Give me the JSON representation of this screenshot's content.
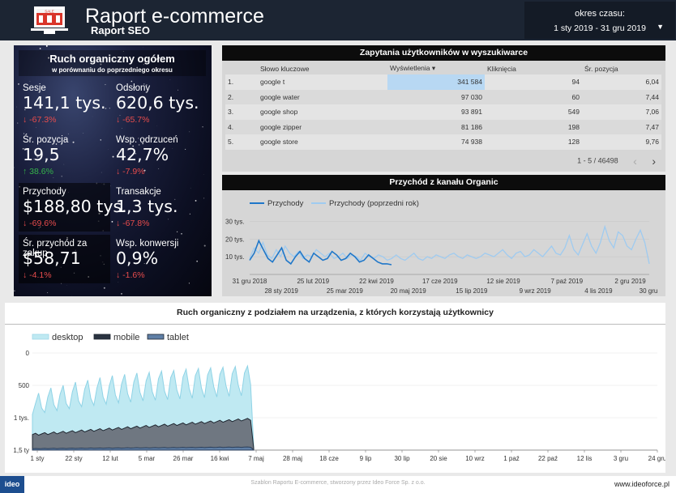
{
  "header": {
    "title": "Raport e-commerce",
    "subtitle": "Raport SEO",
    "period_label": "okres czasu:",
    "period_value": "1 sty 2019 - 31 gru 2019",
    "logo_text": "SALE"
  },
  "overview": {
    "title": "Ruch organiczny ogółem",
    "subtitle": "w porównaniu do poprzedniego okresu",
    "kpis": [
      {
        "label": "Sesje",
        "value": "141,1 tys.",
        "change": "-67.3%",
        "dir": "down"
      },
      {
        "label": "Odsłony",
        "value": "620,6 tys.",
        "change": "-65.7%",
        "dir": "down"
      },
      {
        "label": "Śr. pozycja",
        "value": "19,5",
        "change": "38.6%",
        "dir": "up"
      },
      {
        "label": "Wsp. odrzuceń",
        "value": "42,7%",
        "change": "-7.9%",
        "dir": "down"
      },
      {
        "label": "Przychody",
        "value": "$188,80 tys.",
        "change": "-69.6%",
        "dir": "down"
      },
      {
        "label": "Transakcje",
        "value": "1,3 tys.",
        "change": "-67.8%",
        "dir": "down"
      },
      {
        "label": "Śr. przychód za zakup",
        "value": "$58,71",
        "change": "-4.1%",
        "dir": "down"
      },
      {
        "label": "Wsp. konwersji",
        "value": "0,9%",
        "change": "-1.6%",
        "dir": "down"
      }
    ]
  },
  "queries": {
    "title": "Zapytania użytkowników w wyszukiwarce",
    "columns": [
      "Słowo kluczowe",
      "Wyświetlenia ▾",
      "Kliknięcia",
      "Śr. pozycja"
    ],
    "rows": [
      {
        "n": "1.",
        "keyword": "google t",
        "views": "341 584",
        "clicks": "94",
        "pos": "6,04"
      },
      {
        "n": "2.",
        "keyword": "google water",
        "views": "97 030",
        "clicks": "60",
        "pos": "7,44"
      },
      {
        "n": "3.",
        "keyword": "google shop",
        "views": "93 891",
        "clicks": "549",
        "pos": "7,06"
      },
      {
        "n": "4.",
        "keyword": "google zipper",
        "views": "81 186",
        "clicks": "198",
        "pos": "7,47"
      },
      {
        "n": "5.",
        "keyword": "google store",
        "views": "74 938",
        "clicks": "128",
        "pos": "9,76"
      }
    ],
    "pager": "1 - 5 / 46498"
  },
  "revenue": {
    "title": "Przychód z kanału Organic",
    "legend": [
      "Przychody",
      "Przychody (poprzedni rok)"
    ]
  },
  "devices": {
    "title": "Ruch organiczny z podziałem na urządzenia, z których korzystają użytkownicy",
    "legend": [
      "desktop",
      "mobile",
      "tablet"
    ]
  },
  "footer": {
    "credit": "Szablon Raportu E-commerce, stworzony przez Ideo Force Sp. z o.o.",
    "url": "www.ideoforce.pl",
    "brand": "ideo"
  },
  "chart_data": [
    {
      "type": "line",
      "title": "Przychód z kanału Organic",
      "x_ticks_top": [
        "31 gru 2018",
        "25 lut 2019",
        "22 kwi 2019",
        "17 cze 2019",
        "12 sie 2019",
        "7 paź 2019",
        "2 gru 2019"
      ],
      "x_ticks_bottom": [
        "28 sty 2019",
        "25 mar 2019",
        "20 maj 2019",
        "15 lip 2019",
        "9 wrz 2019",
        "4 lis 2019",
        "30 gru"
      ],
      "y_ticks": [
        "30 tys.",
        "20 tys.",
        "10 tys."
      ],
      "ylim": [
        0,
        32000
      ],
      "series": [
        {
          "name": "Przychody",
          "color": "#1f77c9",
          "values": [
            8000,
            12000,
            19000,
            14000,
            9000,
            7000,
            11000,
            15000,
            8000,
            6000,
            10000,
            13000,
            9000,
            7000,
            12000,
            10000,
            8000,
            9000,
            13000,
            11000,
            8000,
            9000,
            12000,
            10000,
            7000,
            8000,
            11000,
            9000,
            7000,
            6000,
            6000,
            5500
          ]
        },
        {
          "name": "Przychody (poprzedni rok)",
          "color": "#9fcbf0",
          "values": [
            9000,
            15000,
            12000,
            18000,
            11000,
            9000,
            14000,
            10000,
            16000,
            12000,
            10000,
            13000,
            9000,
            11000,
            10000,
            14000,
            12000,
            10000,
            12000,
            9000,
            10000,
            12000,
            9000,
            11000,
            10000,
            8000,
            12000,
            10000,
            9000,
            11000,
            10000,
            8000,
            9000,
            11000,
            9000,
            8000,
            10000,
            12000,
            9000,
            8000,
            10000,
            9000,
            11000,
            10000,
            9000,
            11000,
            12000,
            10000,
            9000,
            11000,
            10000,
            9000,
            10000,
            12000,
            11000,
            10000,
            12000,
            14000,
            11000,
            9000,
            12000,
            13000,
            10000,
            11000,
            14000,
            12000,
            10000,
            13000,
            16000,
            12000,
            11000,
            15000,
            22000,
            14000,
            11000,
            17000,
            23000,
            16000,
            12000,
            18000,
            27000,
            19000,
            15000,
            24000,
            22000,
            16000,
            14000,
            20000,
            25000,
            18000,
            6000
          ]
        }
      ]
    },
    {
      "type": "area",
      "title": "Ruch organiczny z podziałem na urządzenia, z których korzystają użytkownicy",
      "x_ticks": [
        "1 sty",
        "22 sty",
        "12 lut",
        "5 mar",
        "26 mar",
        "16 kwi",
        "7 maj",
        "28 maj",
        "18 cze",
        "9 lip",
        "30 lip",
        "20 sie",
        "10 wrz",
        "1 paź",
        "22 paź",
        "12 lis",
        "3 gru",
        "24 gru"
      ],
      "y_ticks": [
        "0",
        "500",
        "1 tys.",
        "1,5 ty"
      ],
      "ylim": [
        0,
        1500
      ],
      "series": [
        {
          "name": "desktop",
          "color": "#bfe9f2",
          "values": [
            550,
            720,
            880,
            650,
            580,
            820,
            960,
            700,
            610,
            860,
            1000,
            720,
            640,
            900,
            1050,
            760,
            670,
            940,
            1080,
            800,
            690,
            960,
            1120,
            820,
            710,
            990,
            1150,
            850,
            730,
            1020,
            1170,
            870,
            740,
            1050,
            1190,
            890,
            760,
            1070,
            1200,
            900,
            770,
            1100,
            1220,
            910,
            780,
            1120,
            1230,
            930,
            790,
            1130,
            1250,
            950,
            800,
            1150,
            1260,
            960,
            810,
            1160,
            1270,
            980,
            820,
            1170,
            1280,
            990,
            830,
            1180,
            1290,
            1000,
            840,
            1190,
            1300,
            1010,
            60
          ]
        },
        {
          "name": "mobile",
          "color": "#2a3340",
          "values": [
            240,
            260,
            230,
            250,
            270,
            240,
            260,
            280,
            250,
            270,
            290,
            260,
            280,
            300,
            270,
            290,
            310,
            280,
            300,
            320,
            290,
            310,
            330,
            300,
            320,
            340,
            310,
            330,
            350,
            320,
            340,
            360,
            330,
            350,
            370,
            340,
            360,
            380,
            350,
            370,
            390,
            360,
            380,
            400,
            370,
            390,
            410,
            380,
            400,
            420,
            390,
            410,
            430,
            400,
            420,
            440,
            410,
            430,
            450,
            420,
            440,
            460,
            430,
            450,
            470,
            440,
            460,
            480,
            450,
            470,
            490,
            460,
            30
          ]
        },
        {
          "name": "tablet",
          "color": "#5f7fa6",
          "values": [
            20,
            25,
            22,
            24,
            26,
            22,
            25,
            28,
            23,
            26,
            29,
            24,
            27,
            30,
            25,
            28,
            31,
            26,
            29,
            32,
            27,
            30,
            33,
            28,
            31,
            34,
            29,
            32,
            35,
            30,
            33,
            36,
            31,
            34,
            37,
            32,
            35,
            38,
            33,
            36,
            39,
            34,
            37,
            40,
            35,
            38,
            41,
            36,
            39,
            42,
            37,
            40,
            43,
            38,
            41,
            44,
            39,
            42,
            45,
            40,
            43,
            46,
            41,
            44,
            47,
            42,
            45,
            48,
            43,
            46,
            49,
            44,
            5
          ]
        }
      ]
    }
  ]
}
